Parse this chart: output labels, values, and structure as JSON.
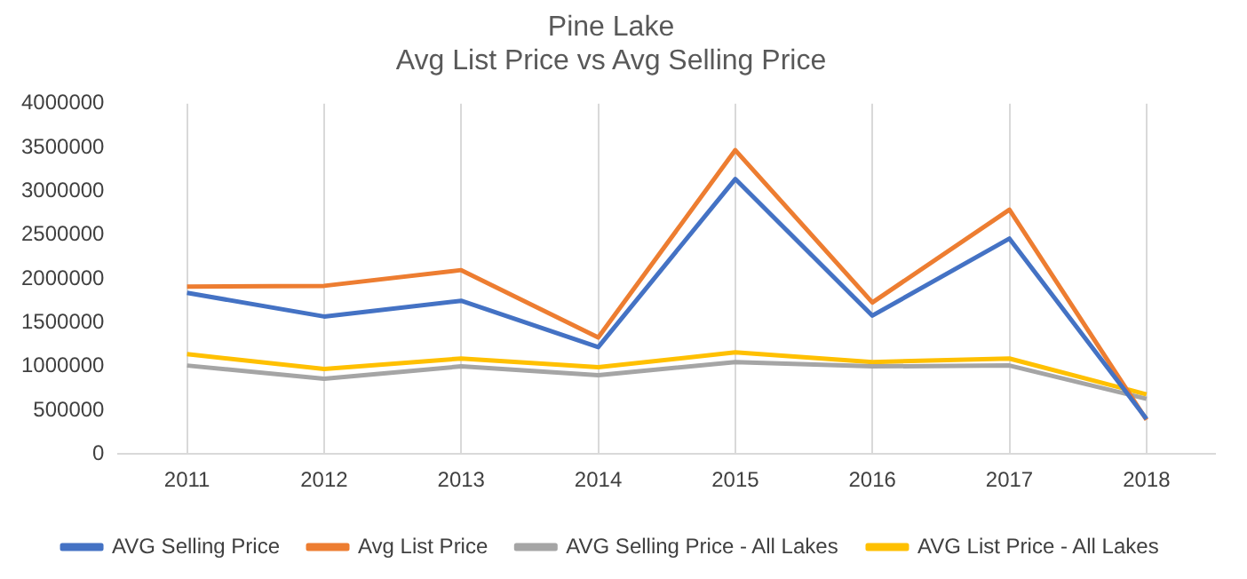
{
  "chart_data": {
    "type": "line",
    "title": [
      "Pine Lake",
      "Avg List Price vs Avg Selling Price"
    ],
    "categories": [
      "2011",
      "2012",
      "2013",
      "2014",
      "2015",
      "2016",
      "2017",
      "2018"
    ],
    "series": [
      {
        "name": "AVG Selling Price",
        "color": "#4472c4",
        "values": [
          1840000,
          1570000,
          1750000,
          1220000,
          3140000,
          1580000,
          2460000,
          400000
        ]
      },
      {
        "name": "Avg List Price",
        "color": "#ed7d31",
        "values": [
          1910000,
          1920000,
          2100000,
          1330000,
          3470000,
          1730000,
          2790000,
          390000
        ]
      },
      {
        "name": "AVG Selling Price - All Lakes",
        "color": "#a5a5a5",
        "values": [
          1010000,
          860000,
          1000000,
          900000,
          1050000,
          1000000,
          1010000,
          630000
        ]
      },
      {
        "name": "AVG List Price - All Lakes",
        "color": "#ffc000",
        "values": [
          1140000,
          970000,
          1090000,
          990000,
          1160000,
          1050000,
          1090000,
          680000
        ]
      }
    ],
    "ylim": [
      0,
      4000000
    ],
    "yticks": [
      0,
      500000,
      1000000,
      1500000,
      2000000,
      2500000,
      3000000,
      3500000,
      4000000
    ],
    "grid": "x",
    "legend": "bottom",
    "marker": "none",
    "line_style": "solid"
  }
}
